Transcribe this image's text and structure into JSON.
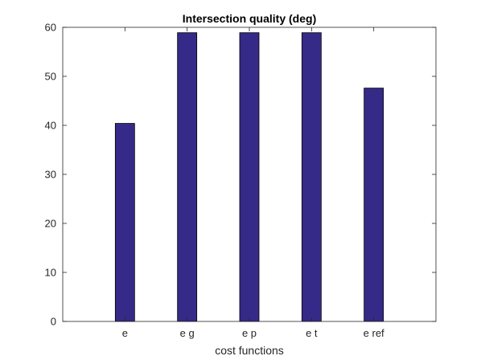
{
  "chart_data": {
    "type": "bar",
    "title": "Intersection quality (deg)",
    "xlabel": "cost functions",
    "ylabel": "",
    "categories": [
      "e",
      "e g",
      "e p",
      "e t",
      "e ref"
    ],
    "values": [
      40.4,
      58.9,
      58.9,
      58.9,
      47.6
    ],
    "ylim": [
      0,
      60
    ],
    "yticks": [
      "0",
      "10",
      "20",
      "30",
      "40",
      "50",
      "60"
    ],
    "grid": false,
    "box": true,
    "bar_color": "#352a87",
    "axis_color": "#262626"
  }
}
